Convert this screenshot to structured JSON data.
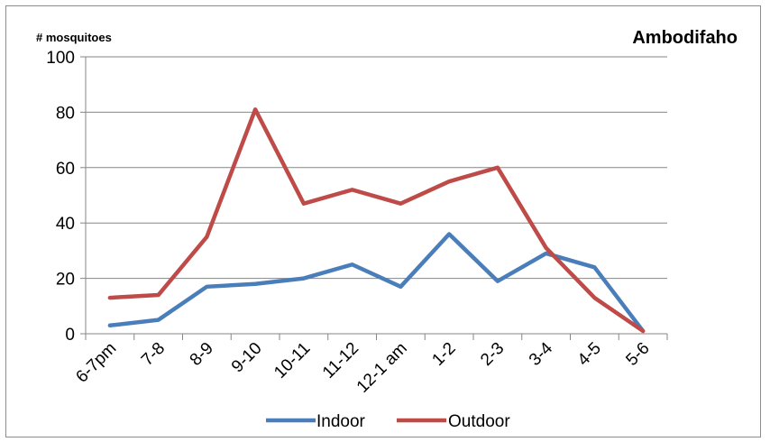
{
  "chart_data": {
    "type": "line",
    "title": "Ambodifaho",
    "ylabel": "# mosquitoes",
    "xlabel": "",
    "categories": [
      "6-7pm",
      "7-8",
      "8-9",
      "9-10",
      "10-11",
      "11-12",
      "12-1 am",
      "1-2",
      "2-3",
      "3-4",
      "4-5",
      "5-6"
    ],
    "ylim": [
      0,
      100
    ],
    "yticks": [
      0,
      20,
      40,
      60,
      80,
      100
    ],
    "grid": true,
    "legend": "bottom",
    "series": [
      {
        "name": "Indoor",
        "color": "#4a7ebb",
        "values": [
          3,
          5,
          17,
          18,
          20,
          25,
          17,
          36,
          19,
          29,
          24,
          1
        ]
      },
      {
        "name": "Outdoor",
        "color": "#be4b48",
        "values": [
          13,
          14,
          35,
          81,
          47,
          52,
          47,
          55,
          60,
          31,
          13,
          1
        ]
      }
    ]
  }
}
